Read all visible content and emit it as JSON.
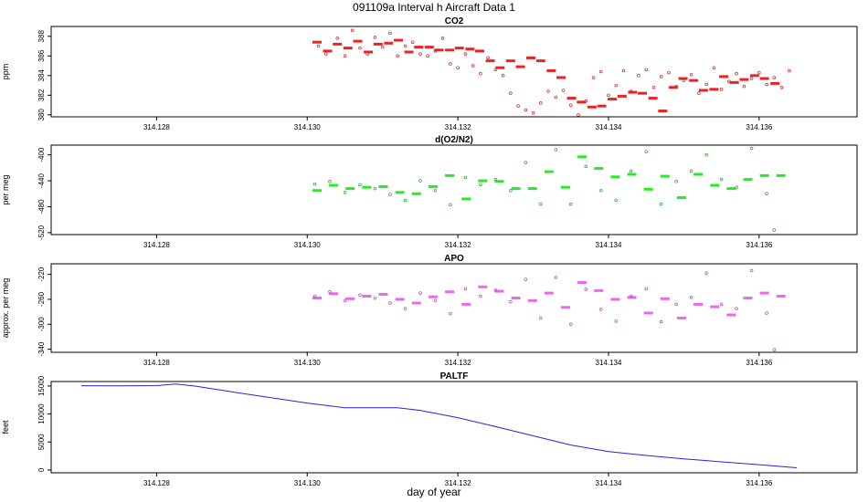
{
  "figure": {
    "title": "091109a   Interval h Aircraft Data 1",
    "xlabel": "day of year"
  },
  "chart_data": [
    {
      "type": "scatter",
      "title": "CO2",
      "ylabel": "ppm",
      "xlim": [
        314.1266,
        314.1373
      ],
      "ylim": [
        379.8,
        389.0
      ],
      "xticks": [
        314.128,
        314.13,
        314.132,
        314.134,
        314.136
      ],
      "xtick_labels": [
        "314.128",
        "314.130",
        "314.132",
        "314.134",
        "314.136"
      ],
      "yticks": [
        380,
        382,
        384,
        386,
        388
      ],
      "ytick_labels": [
        "380",
        "382",
        "384",
        "386",
        "388"
      ],
      "colors": {
        "means": "#ee2222",
        "points": "#cc2222"
      },
      "series": [
        {
          "name": "averages",
          "style": "dash",
          "x": [
            314.13013,
            314.13027,
            314.1304,
            314.13054,
            314.13067,
            314.13081,
            314.13094,
            314.13108,
            314.13121,
            314.13135,
            314.13148,
            314.13162,
            314.13175,
            314.13189,
            314.13202,
            314.13216,
            314.13229,
            314.13243,
            314.13256,
            314.1327,
            314.13283,
            314.13297,
            314.1331,
            314.13324,
            314.13337,
            314.13351,
            314.13364,
            314.13378,
            314.13391,
            314.13405,
            314.13418,
            314.13432,
            314.13445,
            314.13459,
            314.13472,
            314.13486,
            314.13499,
            314.13513,
            314.13526,
            314.1354,
            314.13553,
            314.13567,
            314.1358,
            314.13594,
            314.13607,
            314.13621
          ],
          "y": [
            387.4,
            386.5,
            387.2,
            386.8,
            387.5,
            386.4,
            387.2,
            387.3,
            387.6,
            386.4,
            386.9,
            386.9,
            386.6,
            386.6,
            386.8,
            386.7,
            386.5,
            385.5,
            384.8,
            385.5,
            384.9,
            385.8,
            385.5,
            384.5,
            383.8,
            381.7,
            381.3,
            380.8,
            380.9,
            381.6,
            381.9,
            382.3,
            382.2,
            381.7,
            380.4,
            382.8,
            383.7,
            383.5,
            382.5,
            382.6,
            383.9,
            383.3,
            383.6,
            384.0,
            383.7,
            383.2
          ]
        },
        {
          "name": "samples",
          "style": "circle",
          "x": [
            314.13015,
            314.13025,
            314.1304,
            314.1305,
            314.1306,
            314.1307,
            314.1308,
            314.1309,
            314.131,
            314.1311,
            314.1312,
            314.1313,
            314.1314,
            314.1315,
            314.1316,
            314.1317,
            314.1318,
            314.1319,
            314.132,
            314.1321,
            314.1322,
            314.1323,
            314.1324,
            314.1325,
            314.1326,
            314.1327,
            314.1328,
            314.1329,
            314.133,
            314.1331,
            314.1332,
            314.1333,
            314.1334,
            314.1335,
            314.1336,
            314.1337,
            314.1338,
            314.1339,
            314.134,
            314.1341,
            314.1342,
            314.1343,
            314.1344,
            314.1345,
            314.1346,
            314.1347,
            314.1348,
            314.1349,
            314.135,
            314.1351,
            314.1352,
            314.1353,
            314.1354,
            314.1355,
            314.1356,
            314.1357,
            314.1358,
            314.1359,
            314.136,
            314.1361,
            314.1362,
            314.1363,
            314.1364
          ],
          "y": [
            387.0,
            386.2,
            387.8,
            386.0,
            388.6,
            386.8,
            386.2,
            387.9,
            386.9,
            388.3,
            386.0,
            387.0,
            387.4,
            386.2,
            386.0,
            386.5,
            387.8,
            385.2,
            384.8,
            386.2,
            385.0,
            384.2,
            385.8,
            384.6,
            384.0,
            382.2,
            380.9,
            380.5,
            380.2,
            381.2,
            382.4,
            381.8,
            382.5,
            381.0,
            380.0,
            381.4,
            383.8,
            384.4,
            382.0,
            383.0,
            384.5,
            382.4,
            384.0,
            384.6,
            382.8,
            383.9,
            384.3,
            382.9,
            383.5,
            384.1,
            382.2,
            383.1,
            384.8,
            382.6,
            383.4,
            384.2,
            382.9,
            383.7,
            384.3,
            383.1,
            383.8,
            382.8,
            384.5
          ]
        }
      ]
    },
    {
      "type": "scatter",
      "title": "d(O2/N2)",
      "ylabel": "per meg",
      "xlim": [
        314.1266,
        314.1373
      ],
      "ylim": [
        -523,
        -385
      ],
      "xticks": [
        314.128,
        314.13,
        314.132,
        314.134,
        314.136
      ],
      "xtick_labels": [
        "314.128",
        "314.130",
        "314.132",
        "314.134",
        "314.136"
      ],
      "yticks": [
        -520,
        -480,
        -440,
        -400
      ],
      "ytick_labels": [
        "-520",
        "-480",
        "-440",
        "-400"
      ],
      "colors": {
        "means": "#22ee22",
        "points": "#22aa22"
      },
      "series": [
        {
          "name": "averages",
          "style": "dash",
          "x": [
            314.13013,
            314.13035,
            314.13057,
            314.13079,
            314.13101,
            314.13123,
            314.13145,
            314.13167,
            314.13189,
            314.13211,
            314.13233,
            314.13255,
            314.13277,
            314.13299,
            314.13321,
            314.13343,
            314.13365,
            314.13387,
            314.13409,
            314.13431,
            314.13453,
            314.13475,
            314.13497,
            314.13519,
            314.13541,
            314.13563,
            314.13585,
            314.13607,
            314.13629
          ],
          "y": [
            -455,
            -447,
            -452,
            -450,
            -449,
            -458,
            -460,
            -449,
            -432,
            -468,
            -440,
            -441,
            -452,
            -452,
            -426,
            -450,
            -403,
            -421,
            -434,
            -430,
            -453,
            -433,
            -466,
            -430,
            -447,
            -452,
            -438,
            -432,
            -432
          ]
        },
        {
          "name": "samples",
          "style": "circle",
          "x": [
            314.1301,
            314.1303,
            314.1305,
            314.1307,
            314.1309,
            314.1311,
            314.1313,
            314.1315,
            314.1317,
            314.1319,
            314.1321,
            314.1323,
            314.1325,
            314.1327,
            314.1329,
            314.1331,
            314.1333,
            314.1335,
            314.1337,
            314.1339,
            314.1341,
            314.1343,
            314.1345,
            314.1347,
            314.1349,
            314.1351,
            314.1353,
            314.1355,
            314.1357,
            314.1359,
            314.1361,
            314.1362
          ],
          "y": [
            -445,
            -441,
            -458,
            -446,
            -452,
            -461,
            -470,
            -440,
            -455,
            -477,
            -435,
            -446,
            -438,
            -455,
            -412,
            -476,
            -392,
            -476,
            -418,
            -455,
            -470,
            -425,
            -395,
            -476,
            -441,
            -425,
            -400,
            -438,
            -450,
            -390,
            -460,
            -516
          ]
        }
      ]
    },
    {
      "type": "scatter",
      "title": "APO",
      "ylabel": "approx. per meg",
      "xlim": [
        314.1266,
        314.1373
      ],
      "ylim": [
        -345,
        -203
      ],
      "xticks": [
        314.128,
        314.13,
        314.132,
        314.134,
        314.136
      ],
      "xtick_labels": [
        "314.128",
        "314.130",
        "314.132",
        "314.134",
        "314.136"
      ],
      "yticks": [
        -340,
        -300,
        -260,
        -220
      ],
      "ytick_labels": [
        "-340",
        "-300",
        "-260",
        "-220"
      ],
      "colors": {
        "means": "#ee66ee",
        "points": "#bb44bb"
      },
      "series": [
        {
          "name": "averages",
          "style": "dash",
          "x": [
            314.13013,
            314.13035,
            314.13057,
            314.13079,
            314.13101,
            314.13123,
            314.13145,
            314.13167,
            314.13189,
            314.13211,
            314.13233,
            314.13255,
            314.13277,
            314.13299,
            314.13321,
            314.13343,
            314.13365,
            314.13387,
            314.13409,
            314.13431,
            314.13453,
            314.13475,
            314.13497,
            314.13519,
            314.13541,
            314.13563,
            314.13585,
            314.13607,
            314.13629
          ],
          "y": [
            -258,
            -251,
            -259,
            -255,
            -252,
            -260,
            -266,
            -256,
            -248,
            -268,
            -240,
            -247,
            -258,
            -262,
            -250,
            -273,
            -233,
            -246,
            -260,
            -257,
            -282,
            -259,
            -290,
            -268,
            -272,
            -285,
            -258,
            -250,
            -255
          ]
        },
        {
          "name": "samples",
          "style": "circle",
          "x": [
            314.1301,
            314.1303,
            314.1305,
            314.1307,
            314.1309,
            314.1311,
            314.1313,
            314.1315,
            314.1317,
            314.1319,
            314.1321,
            314.1323,
            314.1325,
            314.1327,
            314.1329,
            314.1331,
            314.1333,
            314.1335,
            314.1337,
            314.1339,
            314.1341,
            314.1343,
            314.1345,
            314.1347,
            314.1349,
            314.1351,
            314.1353,
            314.1355,
            314.1357,
            314.1359,
            314.1361,
            314.1362
          ],
          "y": [
            -255,
            -248,
            -262,
            -253,
            -258,
            -266,
            -275,
            -250,
            -262,
            -283,
            -243,
            -255,
            -245,
            -264,
            -228,
            -290,
            -225,
            -300,
            -244,
            -276,
            -295,
            -255,
            -243,
            -296,
            -268,
            -257,
            -218,
            -268,
            -275,
            -214,
            -282,
            -341
          ]
        }
      ]
    },
    {
      "type": "line",
      "title": "PALTF",
      "ylabel": "feet",
      "xlim": [
        314.1266,
        314.1373
      ],
      "ylim": [
        -500,
        15800
      ],
      "xticks": [
        314.128,
        314.13,
        314.132,
        314.134,
        314.136
      ],
      "xtick_labels": [
        "314.128",
        "314.130",
        "314.132",
        "314.134",
        "314.136"
      ],
      "yticks": [
        0,
        5000,
        10000,
        15000
      ],
      "ytick_labels": [
        "0",
        "5000",
        "10000",
        "15000"
      ],
      "colors": {
        "line": "#2222ee"
      },
      "series": [
        {
          "name": "PALTF",
          "x": [
            314.127,
            314.1275,
            314.128,
            314.12825,
            314.1285,
            314.129,
            314.1295,
            314.13,
            314.1305,
            314.131,
            314.1312,
            314.1315,
            314.132,
            314.1325,
            314.133,
            314.1335,
            314.134,
            314.1345,
            314.135,
            314.1355,
            314.136,
            314.1365
          ],
          "y": [
            15050,
            15020,
            15060,
            15350,
            15000,
            13950,
            12950,
            11950,
            11100,
            11100,
            11100,
            10650,
            9350,
            7750,
            6100,
            4450,
            3300,
            2600,
            2000,
            1450,
            950,
            400
          ]
        }
      ]
    }
  ]
}
